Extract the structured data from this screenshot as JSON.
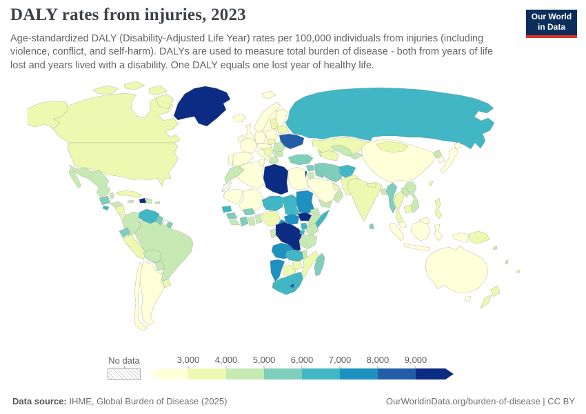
{
  "header": {
    "title": "DALY rates from injuries, 2023",
    "subtitle": "Age-standardized DALY (Disability-Adjusted Life Year) rates per 100,000 individuals from injuries (including violence, conflict, and self-harm). DALYs are used to measure total burden of disease - both from years of life lost and years lived with a disability. One DALY equals one lost year of healthy life.",
    "logo": {
      "line1": "Our World",
      "line2": "in Data",
      "bg_color": "#0d2e5a",
      "accent_color": "#d8352a"
    }
  },
  "footer": {
    "source_label": "Data source:",
    "source_text": " IHME, Global Burden of Disease (2025)",
    "right_text": "OurWorldinData.org/burden-of-disease | CC BY"
  },
  "chart_data": {
    "type": "choropleth",
    "title": "DALY rates from injuries, 2023",
    "year": "2023",
    "unit": "DALY rates per 100,000 individuals from injuries",
    "projection": "world map",
    "legend": {
      "no_data_label": "No data",
      "ticks": [
        "3,000",
        "4,000",
        "5,000",
        "6,000",
        "7,000",
        "8,000",
        "9,000"
      ],
      "bin_colors": [
        "#ffffd9",
        "#edf8b1",
        "#c7e9b4",
        "#7fcdbb",
        "#41b6c4",
        "#1d91c0",
        "#225ea8",
        "#0c2c84"
      ],
      "bin_ranges": [
        "<3,000",
        "3,000-4,000",
        "4,000-5,000",
        "5,000-6,000",
        "6,000-7,000",
        "7,000-8,000",
        "8,000-9,000",
        ">9,000"
      ],
      "open_ended": true
    },
    "countries": [
      {
        "id": "greenland",
        "name": "Greenland",
        "bin": 7
      },
      {
        "id": "canada",
        "name": "Canada",
        "bin": 1
      },
      {
        "id": "usa",
        "name": "United States",
        "bin": 1
      },
      {
        "id": "mexico",
        "name": "Mexico",
        "bin": 2
      },
      {
        "id": "guatemala",
        "name": "Guatemala",
        "bin": 3
      },
      {
        "id": "belize",
        "name": "Belize",
        "bin": 2
      },
      {
        "id": "honduras",
        "name": "Honduras",
        "bin": 2
      },
      {
        "id": "el-salvador",
        "name": "El Salvador",
        "bin": 4
      },
      {
        "id": "nicaragua",
        "name": "Nicaragua",
        "bin": 1
      },
      {
        "id": "costa-rica",
        "name": "Costa Rica",
        "bin": 1
      },
      {
        "id": "panama",
        "name": "Panama",
        "bin": 2
      },
      {
        "id": "cuba",
        "name": "Cuba",
        "bin": 1
      },
      {
        "id": "jamaica",
        "name": "Jamaica",
        "bin": 2
      },
      {
        "id": "haiti",
        "name": "Haiti",
        "bin": 7
      },
      {
        "id": "dominican-republic",
        "name": "Dominican Republic",
        "bin": 2
      },
      {
        "id": "puerto-rico",
        "name": "Puerto Rico",
        "bin": 2
      },
      {
        "id": "colombia",
        "name": "Colombia",
        "bin": 2
      },
      {
        "id": "venezuela",
        "name": "Venezuela",
        "bin": 4
      },
      {
        "id": "guyana",
        "name": "Guyana",
        "bin": 3
      },
      {
        "id": "suriname",
        "name": "Suriname",
        "bin": null
      },
      {
        "id": "french-guiana",
        "name": "French Guiana",
        "bin": 3
      },
      {
        "id": "ecuador",
        "name": "Ecuador",
        "bin": 3
      },
      {
        "id": "peru",
        "name": "Peru",
        "bin": 1
      },
      {
        "id": "brazil",
        "name": "Brazil",
        "bin": 2
      },
      {
        "id": "bolivia",
        "name": "Bolivia",
        "bin": 2
      },
      {
        "id": "paraguay",
        "name": "Paraguay",
        "bin": 2
      },
      {
        "id": "uruguay",
        "name": "Uruguay",
        "bin": 1
      },
      {
        "id": "argentina",
        "name": "Argentina",
        "bin": 0
      },
      {
        "id": "chile",
        "name": "Chile",
        "bin": 0
      },
      {
        "id": "iceland",
        "name": "Iceland",
        "bin": 0
      },
      {
        "id": "ireland",
        "name": "Ireland",
        "bin": 0
      },
      {
        "id": "uk",
        "name": "United Kingdom",
        "bin": 0
      },
      {
        "id": "norway",
        "name": "Norway",
        "bin": 0
      },
      {
        "id": "sweden",
        "name": "Sweden",
        "bin": 0
      },
      {
        "id": "finland",
        "name": "Finland",
        "bin": 0
      },
      {
        "id": "svalbard",
        "name": "Svalbard",
        "bin": 0
      },
      {
        "id": "denmark",
        "name": "Denmark",
        "bin": 0
      },
      {
        "id": "portugal",
        "name": "Portugal",
        "bin": 0
      },
      {
        "id": "spain",
        "name": "Spain",
        "bin": 0
      },
      {
        "id": "france",
        "name": "France",
        "bin": 0
      },
      {
        "id": "germany",
        "name": "Germany",
        "bin": 0
      },
      {
        "id": "central-europe",
        "name": "Central Europe",
        "bin": 0
      },
      {
        "id": "italy",
        "name": "Italy",
        "bin": 0
      },
      {
        "id": "poland",
        "name": "Poland",
        "bin": 0
      },
      {
        "id": "baltics",
        "name": "Baltic states",
        "bin": 1
      },
      {
        "id": "belarus",
        "name": "Belarus",
        "bin": 1
      },
      {
        "id": "ukraine",
        "name": "Ukraine",
        "bin": 6
      },
      {
        "id": "hungary-slovakia",
        "name": "Hungary / Slovakia",
        "bin": 1
      },
      {
        "id": "balkans",
        "name": "Western Balkans",
        "bin": 1
      },
      {
        "id": "romania",
        "name": "Romania",
        "bin": 2
      },
      {
        "id": "bulgaria",
        "name": "Bulgaria",
        "bin": 2
      },
      {
        "id": "greece",
        "name": "Greece",
        "bin": 2
      },
      {
        "id": "caucasus",
        "name": "Caucasus",
        "bin": 2
      },
      {
        "id": "turkey",
        "name": "Turkey",
        "bin": 3
      },
      {
        "id": "syria",
        "name": "Syria",
        "bin": 3
      },
      {
        "id": "israel-palestine",
        "name": "Israel / Palestine",
        "bin": 7
      },
      {
        "id": "jordan",
        "name": "Jordan",
        "bin": 2
      },
      {
        "id": "iraq",
        "name": "Iraq",
        "bin": 3
      },
      {
        "id": "iran",
        "name": "Iran",
        "bin": 3
      },
      {
        "id": "saudi-arabia",
        "name": "Saudi Arabia",
        "bin": 0
      },
      {
        "id": "yemen",
        "name": "Yemen",
        "bin": 2
      },
      {
        "id": "oman",
        "name": "Oman",
        "bin": 2
      },
      {
        "id": "gulf-states",
        "name": "Gulf states",
        "bin": 1
      },
      {
        "id": "turkmenistan",
        "name": "Turkmenistan",
        "bin": 1
      },
      {
        "id": "uzbekistan",
        "name": "Uzbekistan",
        "bin": 2
      },
      {
        "id": "kyrgyzstan-tajikistan",
        "name": "Kyrgyzstan / Tajikistan",
        "bin": 2
      },
      {
        "id": "kazakhstan",
        "name": "Kazakhstan",
        "bin": 1
      },
      {
        "id": "russia",
        "name": "Russia",
        "bin": 4
      },
      {
        "id": "afghanistan",
        "name": "Afghanistan",
        "bin": 4
      },
      {
        "id": "pakistan",
        "name": "Pakistan",
        "bin": 1
      },
      {
        "id": "india",
        "name": "India",
        "bin": 1
      },
      {
        "id": "nepal",
        "name": "Nepal",
        "bin": 1
      },
      {
        "id": "bangladesh",
        "name": "Bangladesh",
        "bin": 2
      },
      {
        "id": "sri-lanka",
        "name": "Sri Lanka",
        "bin": 3
      },
      {
        "id": "china",
        "name": "China",
        "bin": 0
      },
      {
        "id": "mongolia",
        "name": "Mongolia",
        "bin": 1
      },
      {
        "id": "north-korea",
        "name": "North Korea",
        "bin": 2
      },
      {
        "id": "south-korea",
        "name": "South Korea",
        "bin": 0
      },
      {
        "id": "japan",
        "name": "Japan",
        "bin": 0
      },
      {
        "id": "taiwan",
        "name": "Taiwan",
        "bin": 1
      },
      {
        "id": "myanmar",
        "name": "Myanmar",
        "bin": 3
      },
      {
        "id": "thailand",
        "name": "Thailand",
        "bin": 1
      },
      {
        "id": "laos",
        "name": "Laos",
        "bin": 2
      },
      {
        "id": "vietnam",
        "name": "Vietnam",
        "bin": 2
      },
      {
        "id": "cambodia",
        "name": "Cambodia",
        "bin": 1
      },
      {
        "id": "malaysia",
        "name": "Malaysia",
        "bin": 0
      },
      {
        "id": "indonesia",
        "name": "Indonesia",
        "bin": 0
      },
      {
        "id": "philippines",
        "name": "Philippines",
        "bin": 1
      },
      {
        "id": "papua-new-guinea",
        "name": "Papua New Guinea",
        "bin": 1
      },
      {
        "id": "solomon-islands",
        "name": "Solomon Islands",
        "bin": 2
      },
      {
        "id": "vanuatu",
        "name": "Vanuatu",
        "bin": 2
      },
      {
        "id": "fiji",
        "name": "Fiji",
        "bin": 1
      },
      {
        "id": "australia",
        "name": "Australia",
        "bin": 0
      },
      {
        "id": "new-zealand",
        "name": "New Zealand",
        "bin": 1
      },
      {
        "id": "morocco",
        "name": "Morocco",
        "bin": 2
      },
      {
        "id": "western-sahara",
        "name": "Western Sahara",
        "bin": null
      },
      {
        "id": "algeria",
        "name": "Algeria",
        "bin": 0
      },
      {
        "id": "tunisia",
        "name": "Tunisia",
        "bin": 0
      },
      {
        "id": "libya",
        "name": "Libya",
        "bin": 7
      },
      {
        "id": "egypt",
        "name": "Egypt",
        "bin": 0
      },
      {
        "id": "mauritania",
        "name": "Mauritania",
        "bin": 0
      },
      {
        "id": "mali",
        "name": "Mali",
        "bin": 0
      },
      {
        "id": "niger",
        "name": "Niger",
        "bin": 4
      },
      {
        "id": "chad",
        "name": "Chad",
        "bin": 4
      },
      {
        "id": "sudan",
        "name": "Sudan",
        "bin": 5
      },
      {
        "id": "eritrea",
        "name": "Eritrea",
        "bin": 2
      },
      {
        "id": "ethiopia",
        "name": "Ethiopia",
        "bin": 2
      },
      {
        "id": "somalia",
        "name": "Somalia",
        "bin": 4
      },
      {
        "id": "senegal",
        "name": "Senegal",
        "bin": 4
      },
      {
        "id": "guinea",
        "name": "Guinea",
        "bin": 3
      },
      {
        "id": "sierra-leone-liberia",
        "name": "Sierra Leone / Liberia",
        "bin": 2
      },
      {
        "id": "ivory-coast",
        "name": "Cote d'Ivoire",
        "bin": 3
      },
      {
        "id": "ghana",
        "name": "Ghana",
        "bin": 2
      },
      {
        "id": "burkina-faso",
        "name": "Burkina Faso",
        "bin": 3
      },
      {
        "id": "togo-benin",
        "name": "Togo / Benin",
        "bin": 2
      },
      {
        "id": "nigeria",
        "name": "Nigeria",
        "bin": 1
      },
      {
        "id": "cameroon",
        "name": "Cameroon",
        "bin": 5
      },
      {
        "id": "central-african-republic",
        "name": "Central African Republic",
        "bin": 5
      },
      {
        "id": "south-sudan",
        "name": "South Sudan",
        "bin": 7
      },
      {
        "id": "uganda",
        "name": "Uganda",
        "bin": 4
      },
      {
        "id": "kenya",
        "name": "Kenya",
        "bin": 2
      },
      {
        "id": "rwanda-burundi",
        "name": "Rwanda / Burundi",
        "bin": 4
      },
      {
        "id": "congo",
        "name": "Congo",
        "bin": 4
      },
      {
        "id": "drc",
        "name": "Democratic Republic of Congo",
        "bin": 7
      },
      {
        "id": "gabon",
        "name": "Gabon",
        "bin": 2
      },
      {
        "id": "tanzania",
        "name": "Tanzania",
        "bin": 2
      },
      {
        "id": "angola",
        "name": "Angola",
        "bin": 5
      },
      {
        "id": "zambia",
        "name": "Zambia",
        "bin": 4
      },
      {
        "id": "malawi",
        "name": "Malawi",
        "bin": 2
      },
      {
        "id": "mozambique",
        "name": "Mozambique",
        "bin": 1
      },
      {
        "id": "zimbabwe",
        "name": "Zimbabwe",
        "bin": 1
      },
      {
        "id": "botswana",
        "name": "Botswana",
        "bin": 1
      },
      {
        "id": "namibia",
        "name": "Namibia",
        "bin": 5
      },
      {
        "id": "south-africa",
        "name": "South Africa",
        "bin": 4
      },
      {
        "id": "lesotho",
        "name": "Lesotho",
        "bin": 6
      },
      {
        "id": "madagascar",
        "name": "Madagascar",
        "bin": 3
      }
    ]
  }
}
